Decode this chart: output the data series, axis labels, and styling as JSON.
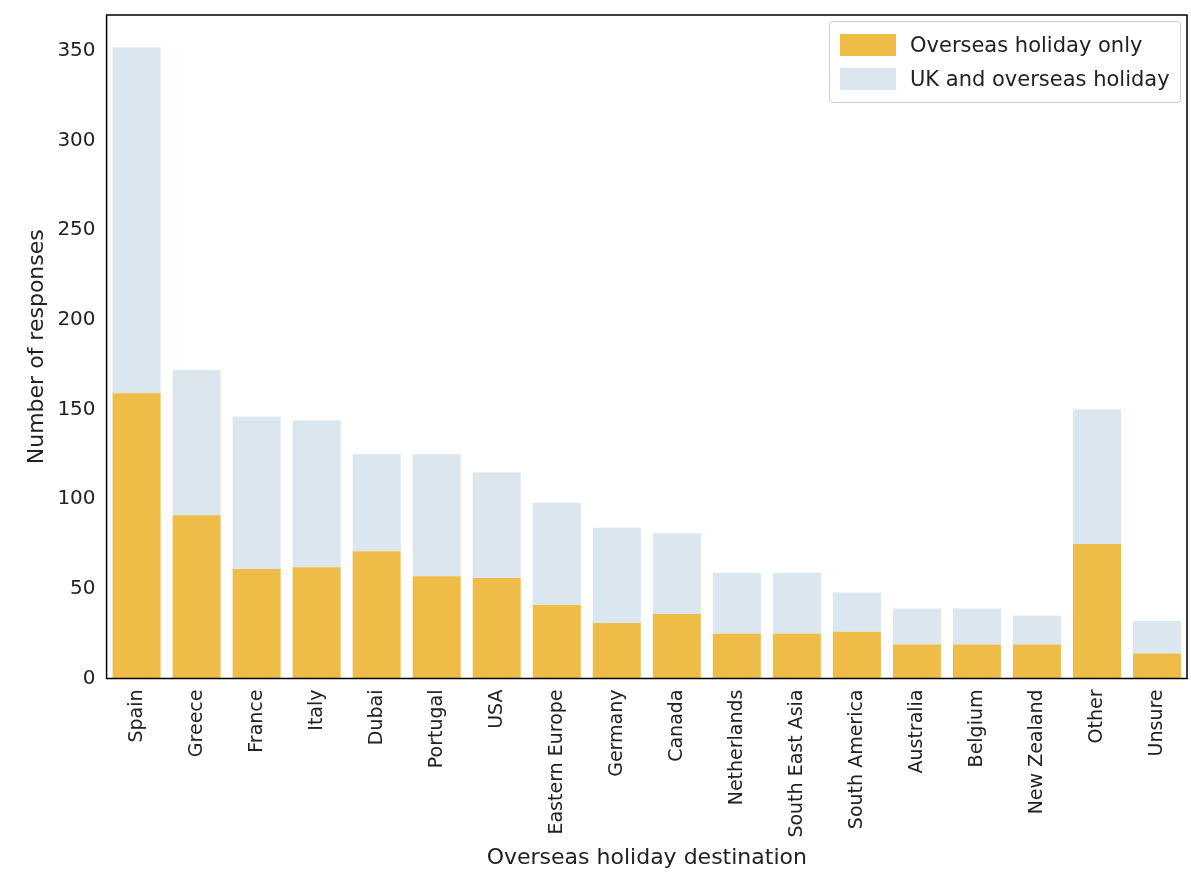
{
  "chart_data": {
    "type": "bar",
    "stacked": true,
    "xlabel": "Overseas holiday destination",
    "ylabel": "Number of responses",
    "categories": [
      "Spain",
      "Greece",
      "France",
      "Italy",
      "Dubai",
      "Portugal",
      "USA",
      "Eastern Europe",
      "Germany",
      "Canada",
      "Netherlands",
      "South East Asia",
      "South America",
      "Australia",
      "Belgium",
      "New Zealand",
      "Other",
      "Unsure"
    ],
    "series": [
      {
        "name": "Overseas holiday only",
        "color": "#f0bc48",
        "values": [
          159,
          91,
          61,
          62,
          71,
          57,
          56,
          41,
          31,
          36,
          25,
          25,
          26,
          19,
          19,
          19,
          75,
          14
        ]
      },
      {
        "name": "UK and overseas holiday",
        "color": "#dce6ee",
        "values": [
          193,
          81,
          85,
          82,
          54,
          68,
          59,
          57,
          53,
          45,
          34,
          34,
          22,
          20,
          20,
          16,
          75,
          18
        ]
      }
    ],
    "ylim": [
      0,
      370
    ],
    "yticks": [
      0,
      50,
      100,
      150,
      200,
      250,
      300,
      350
    ],
    "grid": false,
    "legend": "top right"
  }
}
